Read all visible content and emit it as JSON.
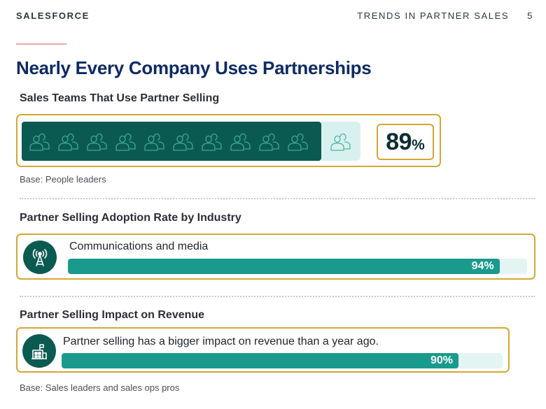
{
  "header": {
    "brand": "SALESFORCE",
    "section": "TRENDS IN PARTNER SALES",
    "page_number": "5"
  },
  "title": "Nearly Every Company Uses Partnerships",
  "sections": [
    {
      "title": "Sales Teams That Use Partner Selling",
      "value_number": "89",
      "value_sign": "%",
      "value_percent": 89,
      "base": "Base: People leaders"
    },
    {
      "title": "Partner Selling Adoption Rate by Industry",
      "icon": "signal-tower-icon",
      "label": "Communications and media",
      "value_text": "94%",
      "value_percent": 94
    },
    {
      "title": "Partner Selling Impact on Revenue",
      "icon": "building-icon",
      "label": "Partner selling has a bigger impact on revenue than a year ago.",
      "value_text": "90%",
      "value_percent": 90,
      "base": "Base: Sales leaders and sales ops pros"
    }
  ],
  "colors": {
    "title": "#0e2a64",
    "dark_teal": "#0b5a52",
    "bar_teal": "#1a9a8d",
    "light_teal": "#d9f1ee",
    "gold_border": "#d4a733",
    "accent_line": "#e8a9a6"
  }
}
